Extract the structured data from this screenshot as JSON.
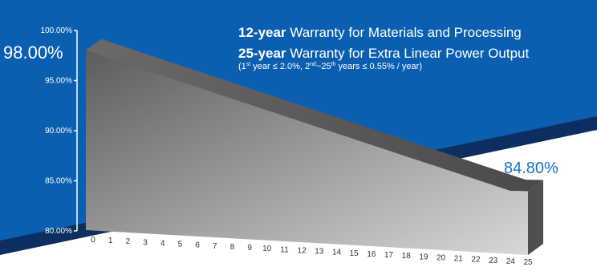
{
  "chart_data": {
    "type": "area",
    "title": "",
    "xlabel": "",
    "ylabel": "",
    "x": [
      0,
      1,
      2,
      3,
      4,
      5,
      6,
      7,
      8,
      9,
      10,
      11,
      12,
      13,
      14,
      15,
      16,
      17,
      18,
      19,
      20,
      21,
      22,
      23,
      24,
      25
    ],
    "x_tick_labels": [
      "0",
      "1",
      "2",
      "3",
      "4",
      "5",
      "6",
      "7",
      "8",
      "9",
      "10",
      "11",
      "12",
      "13",
      "14",
      "15",
      "16",
      "17",
      "18",
      "19",
      "20",
      "21",
      "22",
      "23",
      "24",
      "25"
    ],
    "y_tick_values": [
      80,
      85,
      90,
      95,
      100
    ],
    "y_tick_labels": [
      "80.00%",
      "85.00%",
      "90.00%",
      "95.00%",
      "100.00%"
    ],
    "ylim": [
      80,
      100
    ],
    "series": [
      {
        "values": [
          98.0,
          97.45,
          96.9,
          96.35,
          95.8,
          95.25,
          94.7,
          94.15,
          93.6,
          93.05,
          92.5,
          91.95,
          91.4,
          90.85,
          90.3,
          89.75,
          89.2,
          88.65,
          88.1,
          87.55,
          87.0,
          86.45,
          85.9,
          85.35,
          84.8,
          84.8
        ]
      }
    ],
    "start_label": "98.00%",
    "end_label": "84.80%",
    "annotations": {
      "line1_bold": "12-year",
      "line1_rest": " Warranty for Materials and Processing",
      "line2_bold": "25-year",
      "line2_rest": " Warranty for Extra Linear Power Output",
      "cond_open": "(1",
      "cond_sup1": "st",
      "cond_mid1": " year ≤ 2.0%, 2",
      "cond_sup2": "nd",
      "cond_mid2": "~25",
      "cond_sup3": "th",
      "cond_end": " years ≤ 0.55% / year)"
    },
    "colors": {
      "background_blue": "#0a5fb0",
      "dark_stripe": "#0c2f62",
      "face_light": "#d8d8d8",
      "face_dark": "#5c5c5c",
      "top_side": "#555555",
      "end_value": "#1a6fc4"
    }
  }
}
